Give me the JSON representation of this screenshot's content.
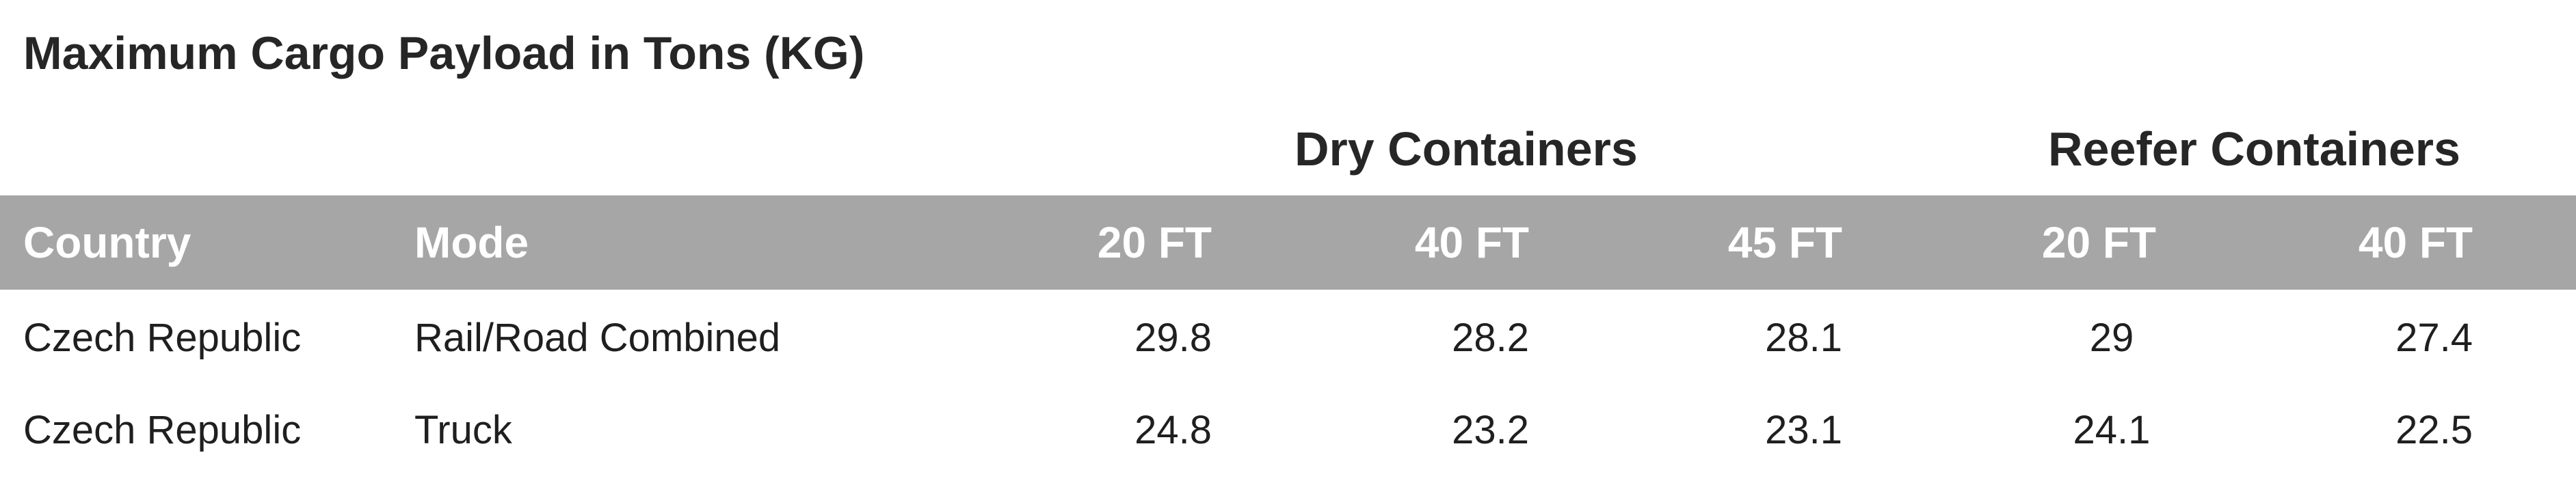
{
  "title": "Maximum Cargo Payload in Tons (KG)",
  "groups": {
    "dry": "Dry Containers",
    "reefer": "Reefer Containers"
  },
  "header": {
    "country": "Country",
    "mode": "Mode",
    "dry_20": "20 FT",
    "dry_40": "40 FT",
    "dry_45": "45 FT",
    "reefer_20": "20 FT",
    "reefer_40": "40 FT"
  },
  "rows": [
    {
      "country": "Czech Republic",
      "mode": "Rail/Road Combined",
      "dry_20": "29.8",
      "dry_40": "28.2",
      "dry_45": "28.1",
      "reefer_20": "29",
      "reefer_40": "27.4"
    },
    {
      "country": "Czech Republic",
      "mode": "Truck",
      "dry_20": "24.8",
      "dry_40": "23.2",
      "dry_45": "23.1",
      "reefer_20": "24.1",
      "reefer_40": "22.5"
    }
  ],
  "colors": {
    "header_band": "#a6a6a6",
    "header_text": "#ffffff",
    "body_text": "#1f1f1f"
  }
}
